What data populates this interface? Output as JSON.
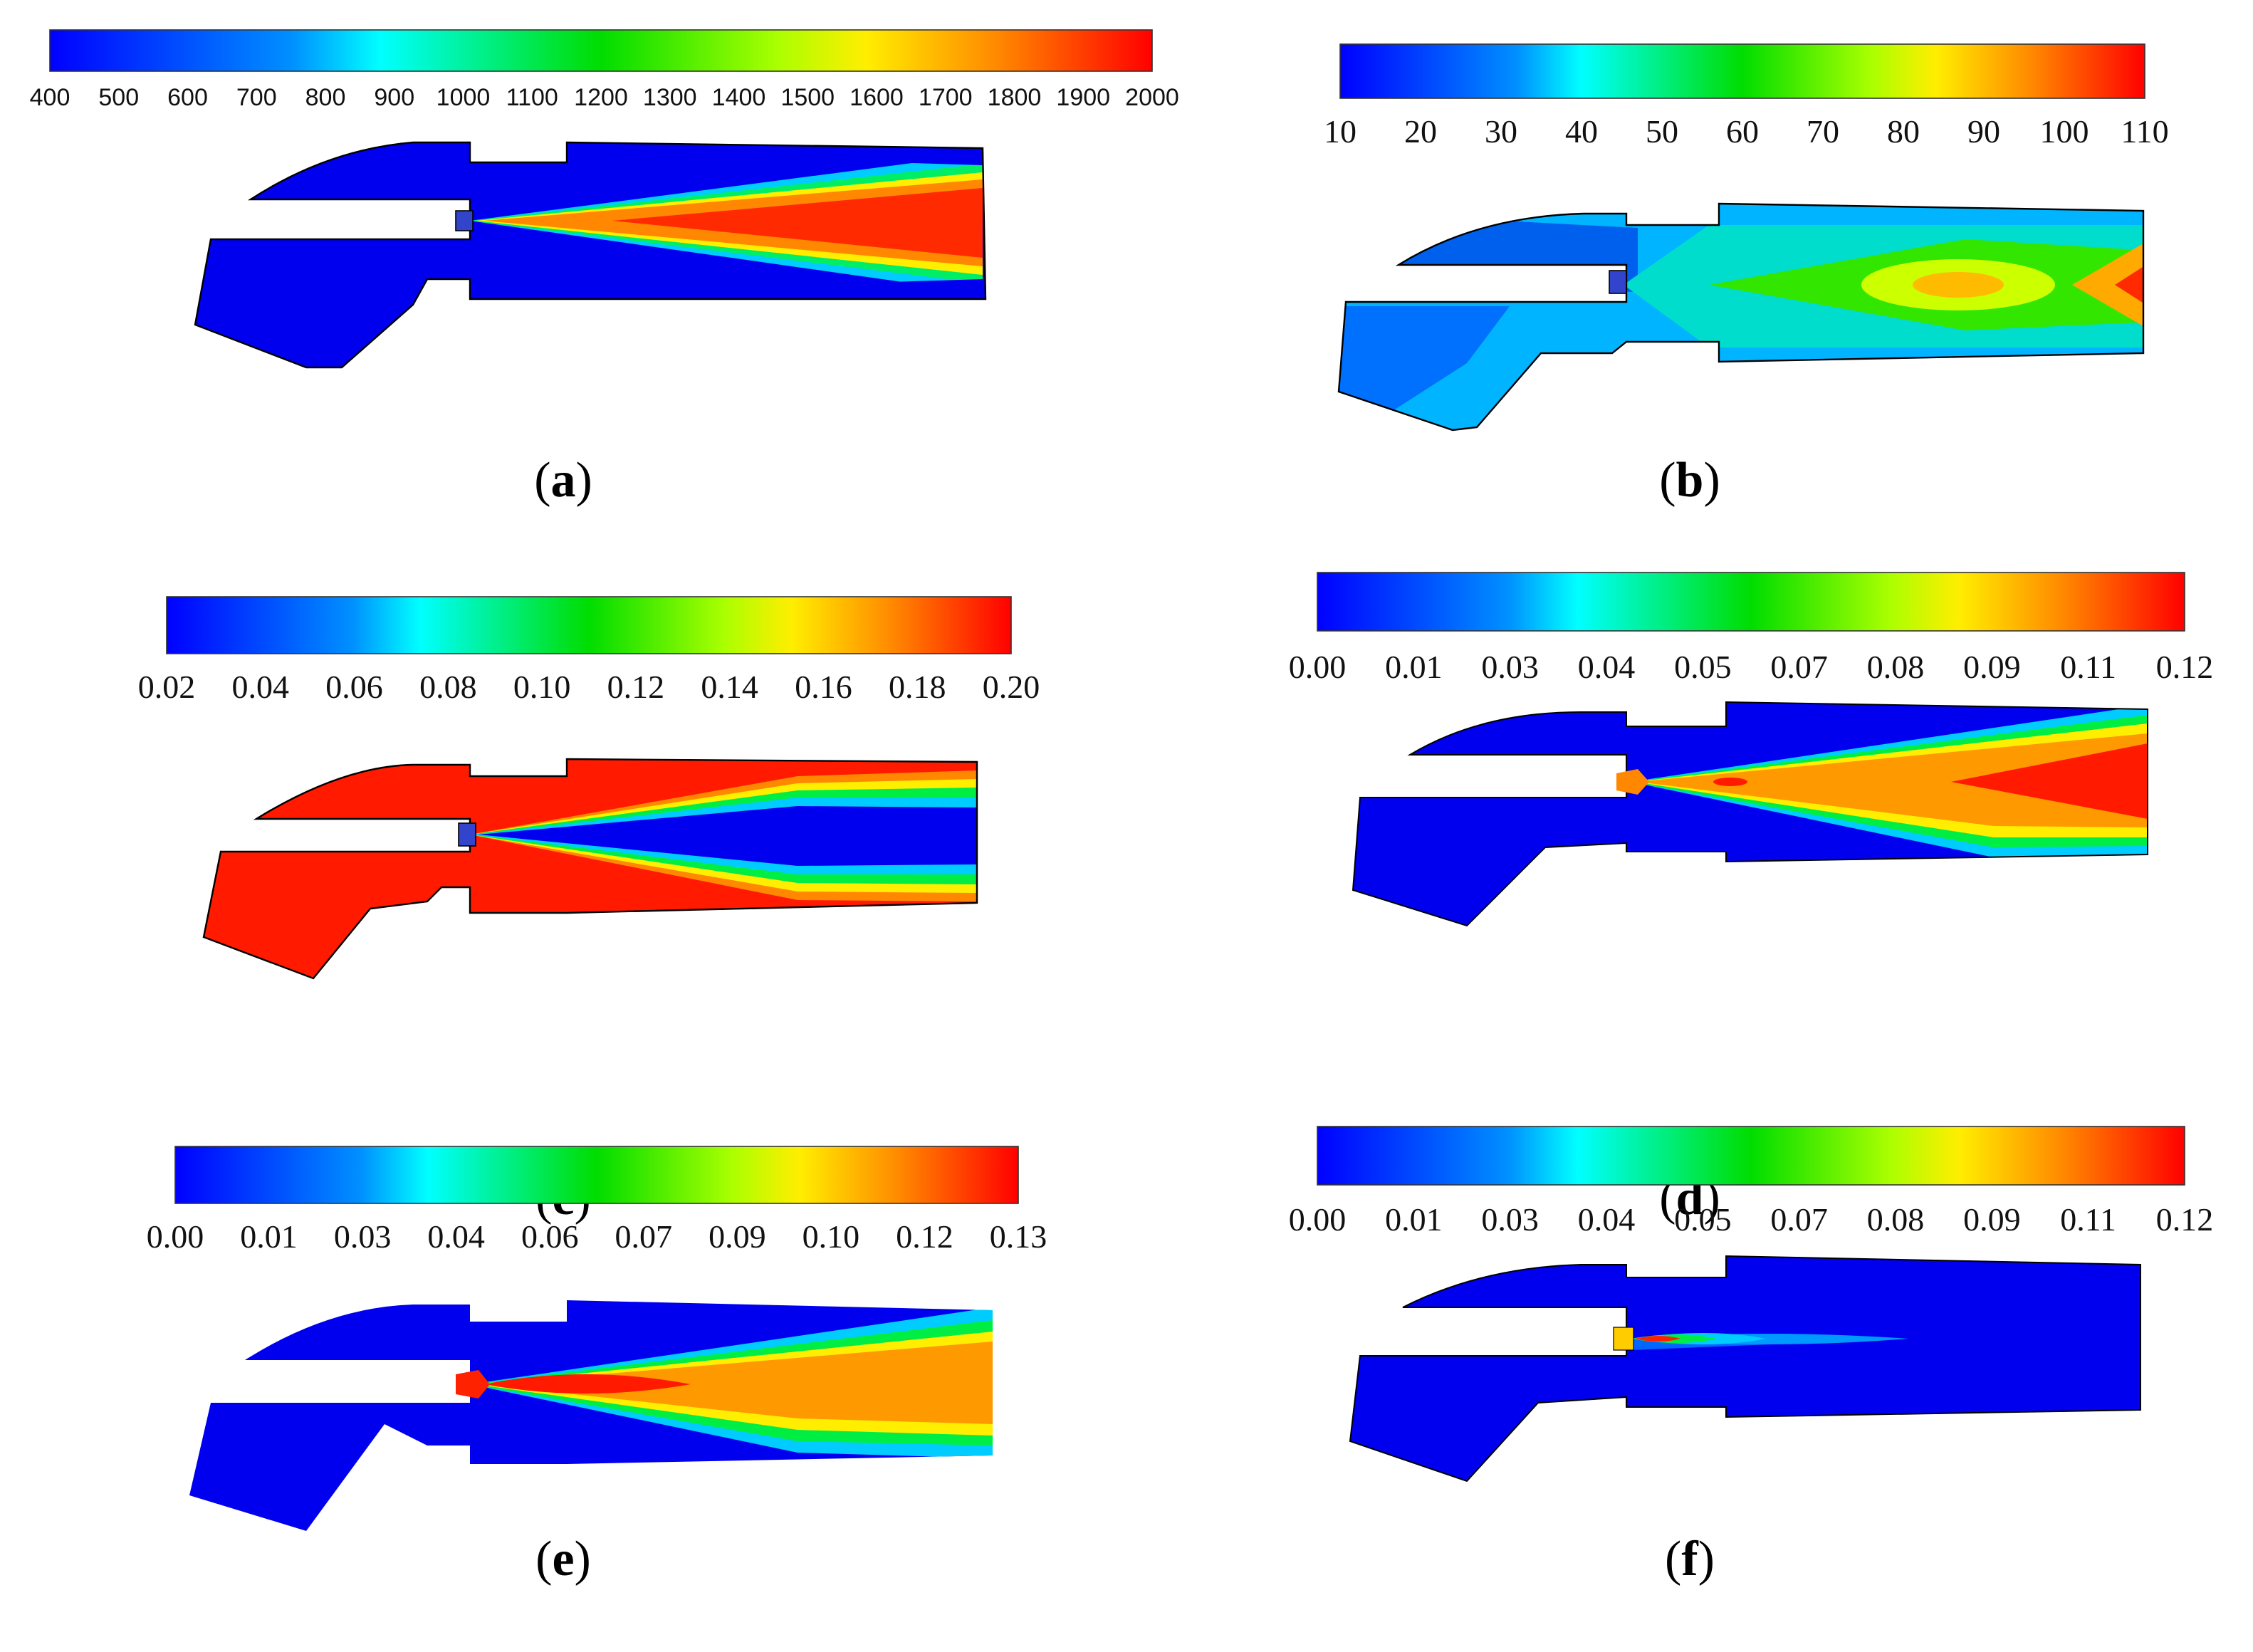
{
  "panels": [
    {
      "id": "a",
      "caption": "a",
      "font": "sans",
      "ticks": [
        "400",
        "500",
        "600",
        "700",
        "800",
        "900",
        "1000",
        "1100",
        "1200",
        "1300",
        "1400",
        "1500",
        "1600",
        "1700",
        "1800",
        "1900",
        "2000"
      ]
    },
    {
      "id": "b",
      "caption": "b",
      "font": "serif",
      "ticks": [
        "10",
        "20",
        "30",
        "40",
        "50",
        "60",
        "70",
        "80",
        "90",
        "100",
        "110"
      ]
    },
    {
      "id": "c",
      "caption": "c",
      "font": "serif",
      "ticks": [
        "0.02",
        "0.04",
        "0.06",
        "0.08",
        "0.10",
        "0.12",
        "0.14",
        "0.16",
        "0.18",
        "0.20"
      ]
    },
    {
      "id": "d",
      "caption": "d",
      "font": "serif",
      "ticks": [
        "0.00",
        "0.01",
        "0.03",
        "0.04",
        "0.05",
        "0.07",
        "0.08",
        "0.09",
        "0.11",
        "0.12"
      ]
    },
    {
      "id": "e",
      "caption": "e",
      "font": "serif",
      "ticks": [
        "0.00",
        "0.01",
        "0.03",
        "0.04",
        "0.06",
        "0.07",
        "0.09",
        "0.10",
        "0.12",
        "0.13"
      ]
    },
    {
      "id": "f",
      "caption": "f",
      "font": "serif",
      "ticks": [
        "0.00",
        "0.01",
        "0.03",
        "0.04",
        "0.05",
        "0.07",
        "0.08",
        "0.09",
        "0.11",
        "0.12"
      ]
    }
  ],
  "colormap": [
    "#0000ff",
    "#00ffff",
    "#00ff00",
    "#ffff00",
    "#ff0000"
  ]
}
